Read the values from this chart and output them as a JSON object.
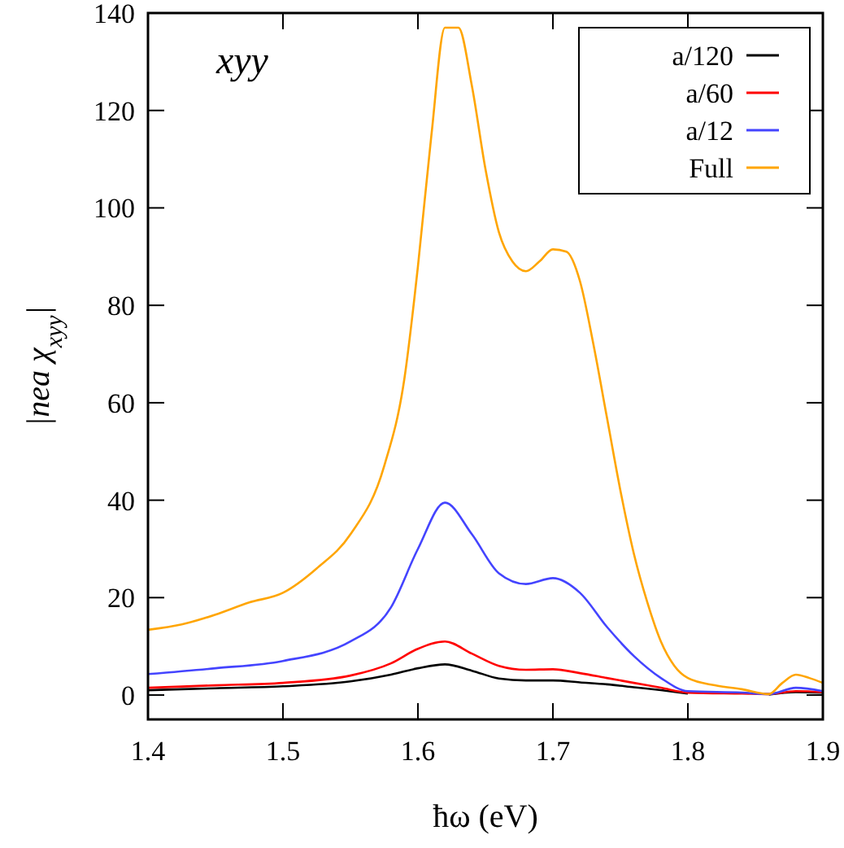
{
  "chart_data": {
    "type": "line",
    "xlabel": "ħω (eV)",
    "ylabel": "|nea χ$_{xyy}$|",
    "annotations": [
      "xyy"
    ],
    "xlim": [
      1.4,
      1.9
    ],
    "ylim": [
      -5,
      140
    ],
    "xticks": [
      1.4,
      1.5,
      1.6,
      1.7,
      1.8,
      1.9
    ],
    "yticks": [
      0,
      20,
      40,
      60,
      80,
      100,
      120,
      140
    ],
    "legend": "top right",
    "grid": false,
    "line_style": "solid",
    "marker": "none",
    "x": [
      1.4,
      1.45,
      1.5,
      1.55,
      1.58,
      1.6,
      1.62,
      1.64,
      1.66,
      1.68,
      1.7,
      1.72,
      1.74,
      1.76,
      1.78,
      1.8,
      1.84,
      1.86,
      1.88,
      1.9
    ],
    "series": [
      {
        "name": "a/120",
        "color": "#000000",
        "values": [
          1,
          1.4,
          1.8,
          2.8,
          4.2,
          5.5,
          6.3,
          5,
          3.4,
          3,
          3,
          2.6,
          2.2,
          1.6,
          1,
          0.3,
          null,
          0.1,
          0.6,
          0.5
        ]
      },
      {
        "name": "a/60",
        "color": "#ff0000",
        "values": [
          1.5,
          2,
          2.5,
          4,
          6.5,
          9.5,
          11,
          8.5,
          6,
          5.2,
          5.3,
          4.5,
          3.5,
          2.5,
          1.5,
          0.5,
          0.3,
          0.2,
          0.8,
          0.6
        ]
      },
      {
        "name": "a/12",
        "color": "#4444ff",
        "values": [
          4.3,
          5.5,
          7,
          11,
          18,
          30,
          39.5,
          33,
          25,
          22.8,
          24,
          21,
          14,
          8,
          3.5,
          0.8,
          0.5,
          0.2,
          1.5,
          0.8
        ]
      },
      {
        "name": "Full",
        "color": "#ffa500",
        "x": [
          1.4,
          1.425,
          1.45,
          1.475,
          1.5,
          1.525,
          1.55,
          1.575,
          1.59,
          1.6,
          1.61,
          1.62,
          1.63,
          1.64,
          1.65,
          1.66,
          1.67,
          1.68,
          1.69,
          1.7,
          1.71,
          1.72,
          1.73,
          1.74,
          1.75,
          1.76,
          1.77,
          1.78,
          1.79,
          1.8,
          1.82,
          1.84,
          1.86,
          1.87,
          1.88,
          1.89,
          1.9
        ],
        "values": [
          13.4,
          14.5,
          16.5,
          19,
          21,
          26,
          33,
          47,
          65,
          88,
          115,
          137,
          137,
          125,
          108,
          95,
          89,
          87,
          89,
          91.5,
          91,
          85,
          72,
          57,
          42,
          29,
          19,
          11,
          6,
          3.5,
          2,
          1.2,
          0.2,
          2.5,
          4.2,
          3.5,
          2.5
        ]
      }
    ]
  }
}
